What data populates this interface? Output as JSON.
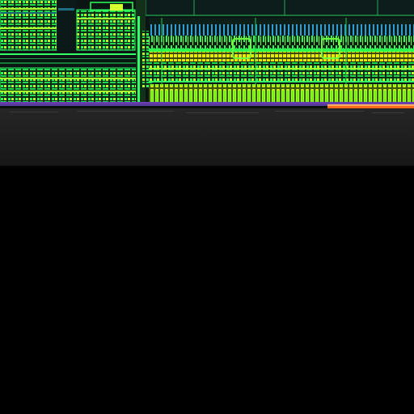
{
  "image": {
    "description_label": "",
    "colors": {
      "background": "#000000",
      "die_dark": "#0b1514",
      "silicon_edge": "#1a1a1a",
      "metal_green": "#22ff44",
      "metal_lime": "#b6ff2a",
      "metal_yellow": "#f2e600",
      "metal_cyan": "#2a9fd6",
      "purple_bus": "#6a3fb0",
      "orange_bus": "#ff6a1f"
    }
  }
}
